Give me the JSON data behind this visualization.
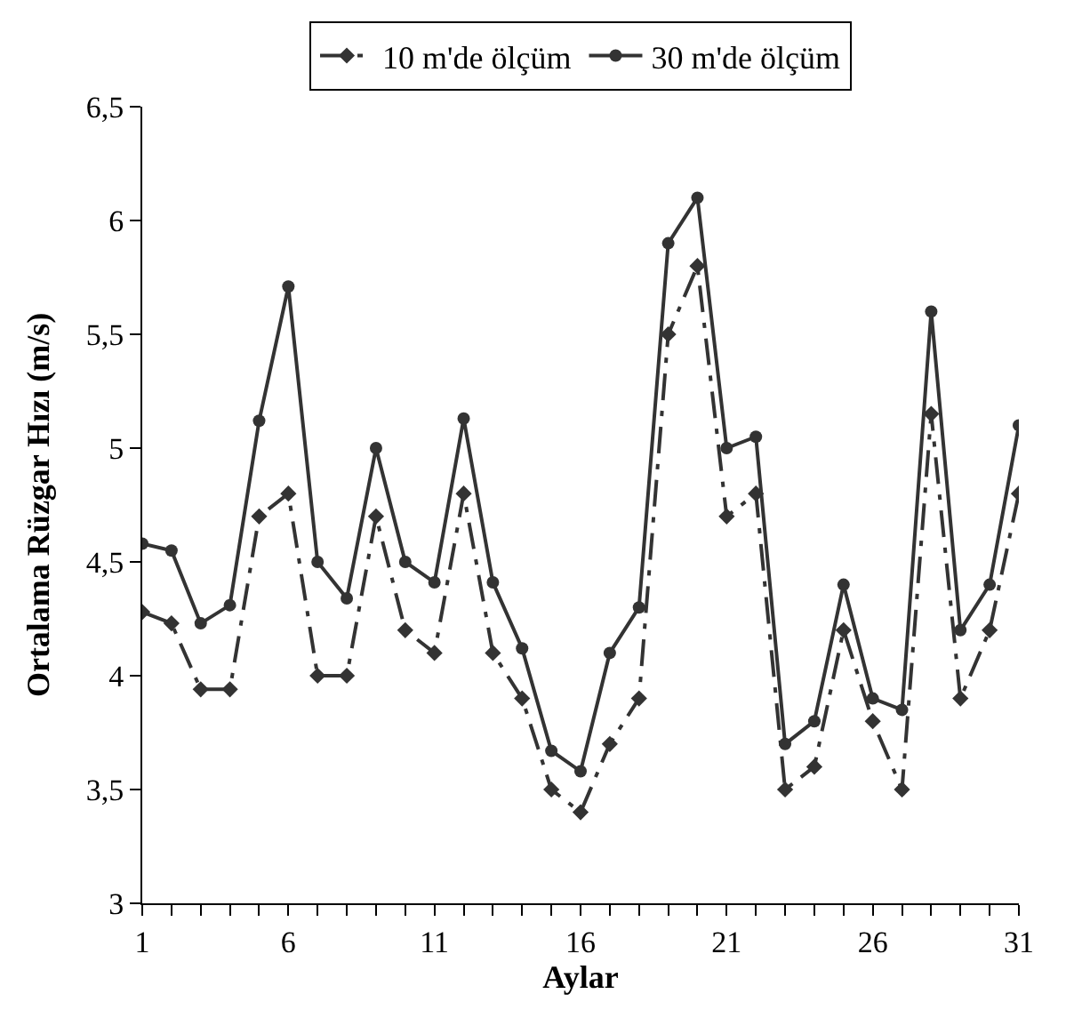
{
  "chart_data": {
    "type": "line",
    "xlabel": "Aylar",
    "ylabel": "Ortalama Rüzgar Hızı (m/s)",
    "x": [
      1,
      2,
      3,
      4,
      5,
      6,
      7,
      8,
      9,
      10,
      11,
      12,
      13,
      14,
      15,
      16,
      17,
      18,
      19,
      20,
      21,
      22,
      23,
      24,
      25,
      26,
      27,
      28,
      29,
      30,
      31
    ],
    "series": [
      {
        "name": "10 m'de ölçüm",
        "color": "#333333",
        "line_style": "dashed",
        "marker": "diamond",
        "values": [
          4.28,
          4.23,
          3.94,
          3.94,
          4.7,
          4.8,
          4.0,
          4.0,
          4.7,
          4.2,
          4.1,
          4.8,
          4.1,
          3.9,
          3.5,
          3.4,
          3.7,
          3.9,
          5.5,
          5.8,
          4.7,
          4.8,
          3.5,
          3.6,
          4.2,
          3.8,
          3.5,
          5.15,
          3.9,
          4.2,
          4.8
        ]
      },
      {
        "name": "30 m'de ölçüm",
        "color": "#333333",
        "line_style": "solid",
        "marker": "circle",
        "values": [
          4.58,
          4.55,
          4.23,
          4.31,
          5.12,
          5.71,
          4.5,
          4.34,
          5.0,
          4.5,
          4.41,
          5.13,
          4.41,
          4.12,
          3.67,
          3.58,
          4.1,
          4.3,
          5.9,
          6.1,
          5.0,
          5.05,
          3.7,
          3.8,
          4.4,
          3.9,
          3.85,
          5.6,
          4.2,
          4.4,
          5.1
        ]
      }
    ],
    "xlim": [
      1,
      31
    ],
    "xticks": [
      1,
      {
        "value": 2,
        "label": null
      },
      {
        "value": 3,
        "label": null
      },
      {
        "value": 4,
        "label": null
      },
      {
        "value": 5,
        "label": null
      },
      6,
      {
        "value": 7,
        "label": null
      },
      {
        "value": 8,
        "label": null
      },
      {
        "value": 9,
        "label": null
      },
      {
        "value": 10,
        "label": null
      },
      11,
      {
        "value": 12,
        "label": null
      },
      {
        "value": 13,
        "label": null
      },
      {
        "value": 14,
        "label": null
      },
      {
        "value": 15,
        "label": null
      },
      16,
      {
        "value": 17,
        "label": null
      },
      {
        "value": 18,
        "label": null
      },
      {
        "value": 19,
        "label": null
      },
      {
        "value": 20,
        "label": null
      },
      21,
      {
        "value": 22,
        "label": null
      },
      {
        "value": 23,
        "label": null
      },
      {
        "value": 24,
        "label": null
      },
      {
        "value": 25,
        "label": null
      },
      26,
      {
        "value": 27,
        "label": null
      },
      {
        "value": 28,
        "label": null
      },
      {
        "value": 29,
        "label": null
      },
      {
        "value": 30,
        "label": null
      },
      31
    ],
    "ylim": [
      3,
      6.5
    ],
    "yticks": [
      3,
      {
        "value": 3.5,
        "label": "3,5"
      },
      4,
      {
        "value": 4.5,
        "label": "4,5"
      },
      5,
      {
        "value": 5.5,
        "label": "5,5"
      },
      6,
      {
        "value": 6.5,
        "label": "6,5"
      }
    ],
    "legend": "top"
  }
}
